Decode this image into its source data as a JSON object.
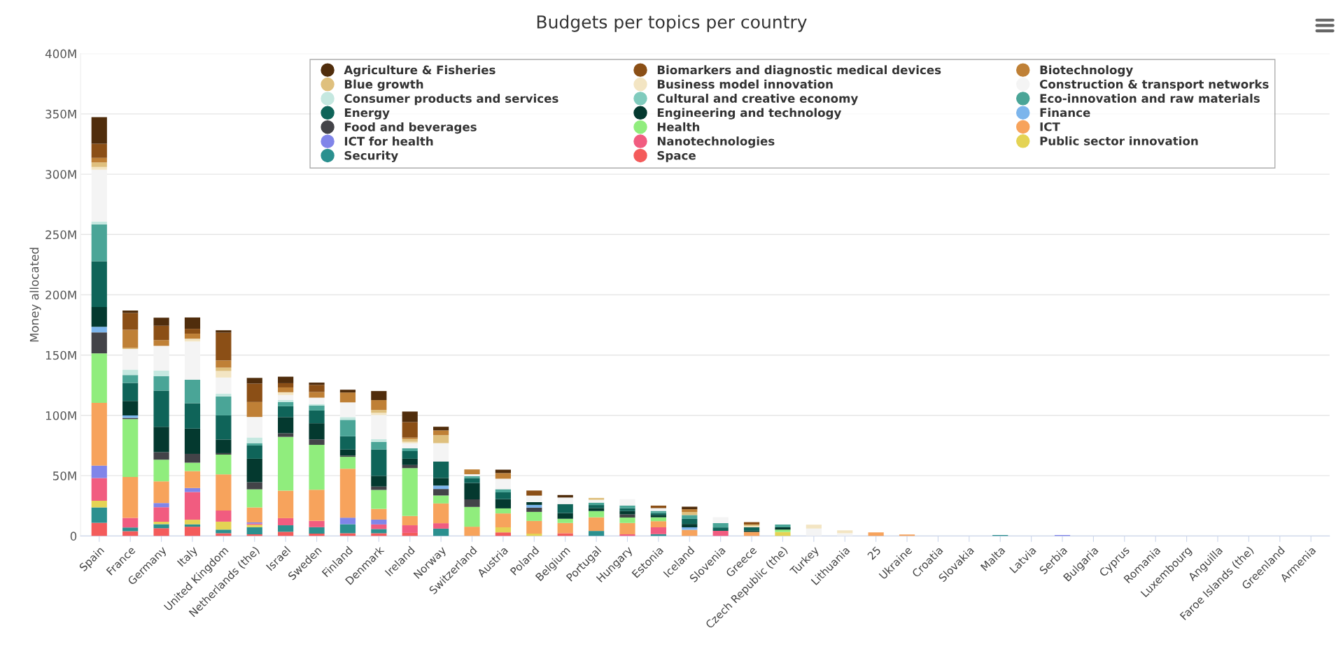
{
  "chart_data": {
    "type": "bar",
    "stacked": true,
    "title": "Budgets per topics per country",
    "ylabel": "Money allocated",
    "categories": [
      "Spain",
      "France",
      "Germany",
      "Italy",
      "United Kingdom",
      "Netherlands (the)",
      "Israel",
      "Sweden",
      "Finland",
      "Denmark",
      "Ireland",
      "Norway",
      "Switzerland",
      "Austria",
      "Poland",
      "Belgium",
      "Portugal",
      "Hungary",
      "Estonia",
      "Iceland",
      "Slovenia",
      "Greece",
      "Czech Republic (the)",
      "Turkey",
      "Lithuania",
      "25",
      "Ukraine",
      "Croatia",
      "Slovakia",
      "Malta",
      "Latvia",
      "Serbia",
      "Bulgaria",
      "Cyprus",
      "Romania",
      "Luxembourg",
      "Anguilla",
      "Faroe Islands (the)",
      "Greenland",
      "Armenia"
    ],
    "ylim": [
      0,
      400
    ],
    "yticks": [
      {
        "value": 0,
        "label": "0"
      },
      {
        "value": 50,
        "label": "50M"
      },
      {
        "value": 100,
        "label": "100M"
      },
      {
        "value": 150,
        "label": "150M"
      },
      {
        "value": 200,
        "label": "200M"
      },
      {
        "value": 250,
        "label": "250M"
      },
      {
        "value": 300,
        "label": "300M"
      },
      {
        "value": 350,
        "label": "350M"
      },
      {
        "value": 400,
        "label": "400M"
      }
    ],
    "grid": "y",
    "legend": "top",
    "series": [
      {
        "name": "Space",
        "color": "#f45b5b",
        "values": [
          11,
          4,
          6.5,
          7.7,
          2.3,
          1.4,
          3.5,
          1.9,
          2.3,
          2.3,
          2.6,
          0,
          0,
          3,
          0,
          2.3,
          0,
          0,
          0,
          0,
          0,
          0,
          0,
          0,
          0,
          0,
          0,
          0,
          0,
          0,
          0,
          0,
          0,
          0,
          0,
          0,
          0,
          0,
          0,
          0
        ]
      },
      {
        "name": "Security",
        "color": "#2b908f",
        "values": [
          12.7,
          3,
          3.3,
          2,
          3,
          5.9,
          5.4,
          5.4,
          7.5,
          3.5,
          0,
          6.1,
          0,
          0,
          0,
          0,
          4.2,
          0,
          1.5,
          0,
          0,
          0,
          0,
          0,
          0,
          0,
          0,
          0,
          0,
          0.8,
          0,
          0,
          0,
          0,
          0,
          0,
          0,
          0,
          0,
          0
        ]
      },
      {
        "name": "Public sector innovation",
        "color": "#e4d354",
        "values": [
          5.6,
          0,
          2,
          3.8,
          6.6,
          2,
          0,
          0,
          0,
          0,
          0,
          0,
          0,
          4.2,
          1.9,
          0,
          0,
          0,
          0,
          0,
          0,
          0,
          3.4,
          0,
          0,
          0,
          0,
          0,
          0,
          0,
          0,
          0,
          0,
          0,
          0,
          0,
          0,
          0,
          0,
          0
        ]
      },
      {
        "name": "Nanotechnologies",
        "color": "#f15c80",
        "values": [
          18.8,
          8,
          12,
          23,
          9.2,
          1,
          5.9,
          5.2,
          0,
          3.8,
          6.3,
          4.5,
          0,
          0,
          0,
          0,
          0,
          1.4,
          5.7,
          0,
          4.3,
          0,
          0,
          0,
          0,
          0,
          0,
          0,
          0,
          0,
          0,
          0,
          0,
          0,
          0,
          0,
          0,
          0,
          0,
          0
        ]
      },
      {
        "name": "ICT for health",
        "color": "#8085e9",
        "values": [
          10.3,
          0,
          3.5,
          3.3,
          0,
          1,
          0,
          0,
          5.4,
          4,
          0,
          0,
          0,
          0,
          0,
          0,
          0,
          0,
          0,
          0,
          0,
          0,
          0,
          0,
          0,
          0,
          0,
          0,
          0,
          0,
          0,
          0.8,
          0,
          0,
          0,
          0,
          0,
          0,
          0,
          0
        ]
      },
      {
        "name": "ICT",
        "color": "#f7a35c",
        "values": [
          52,
          34,
          18,
          14,
          30,
          12.4,
          22.8,
          25.8,
          40.6,
          8.9,
          7.7,
          16.4,
          7.7,
          11.5,
          10.6,
          8.5,
          11.3,
          9.4,
          5.1,
          5.1,
          0,
          3.4,
          0,
          0,
          0,
          3,
          1.3,
          0,
          0,
          0,
          0,
          0,
          0,
          0,
          0,
          0,
          0,
          0,
          0,
          0
        ]
      },
      {
        "name": "Health",
        "color": "#90ed7d",
        "values": [
          41,
          48,
          18,
          7,
          16.4,
          15,
          44.6,
          37.3,
          9.9,
          15.7,
          39.7,
          6.6,
          16.4,
          4.2,
          7.5,
          3.5,
          5.2,
          4.5,
          3.2,
          0,
          0,
          0,
          1.9,
          0,
          0,
          0,
          0,
          0,
          0,
          0,
          0,
          0,
          0,
          0,
          0,
          0,
          0,
          0,
          0,
          0
        ]
      },
      {
        "name": "Food and beverages",
        "color": "#434348",
        "values": [
          17.4,
          1,
          6.3,
          7.3,
          1.2,
          5.9,
          3,
          4.5,
          1,
          2.8,
          2.6,
          5.4,
          6.3,
          0,
          3.5,
          0,
          0,
          2.6,
          0,
          0,
          0,
          0,
          0,
          0,
          0,
          0,
          0,
          0,
          0,
          0,
          0,
          0,
          0,
          0,
          0,
          0,
          0,
          0,
          0,
          0
        ]
      },
      {
        "name": "Finance",
        "color": "#7cb5ec",
        "values": [
          4.7,
          2,
          0,
          0,
          0,
          0,
          0,
          0,
          0,
          0,
          0,
          2.8,
          0,
          0,
          2.3,
          0,
          0,
          0,
          0,
          2.1,
          0,
          0,
          0,
          0,
          0,
          0,
          0,
          0,
          0,
          0,
          0,
          0,
          0,
          0,
          0,
          0,
          0,
          0,
          0,
          0
        ]
      },
      {
        "name": "Engineering and technology",
        "color": "#04392f",
        "values": [
          16.4,
          12,
          21,
          21,
          11.3,
          19.5,
          13.4,
          13.4,
          5,
          8.9,
          5.2,
          6.3,
          13.6,
          7.7,
          2.3,
          4.7,
          2.5,
          2.8,
          2,
          2.8,
          0,
          1,
          1.9,
          0,
          0,
          0,
          0,
          0,
          0,
          0,
          0,
          0,
          0,
          0,
          0,
          0,
          0,
          0,
          0,
          0
        ]
      },
      {
        "name": "Energy",
        "color": "#0f6459",
        "values": [
          38,
          15,
          30,
          21,
          20,
          11,
          9,
          10.6,
          11,
          21.8,
          6.3,
          13.6,
          4,
          5.6,
          0,
          7.5,
          2.5,
          2.3,
          1.5,
          4.2,
          2.8,
          2.8,
          0,
          0,
          0,
          0,
          0,
          0,
          0,
          0,
          0,
          0,
          0,
          0,
          0,
          0,
          0,
          0,
          0,
          0
        ]
      },
      {
        "name": "Eco-innovation and raw materials",
        "color": "#4aa597",
        "values": [
          30.5,
          6.5,
          12,
          19.5,
          15.7,
          1.9,
          3.5,
          4,
          13.6,
          6.3,
          2.3,
          0,
          1.6,
          2.6,
          0,
          0,
          2,
          2.3,
          1.8,
          3.2,
          3.6,
          0,
          2.3,
          0,
          0,
          0,
          0,
          0,
          0,
          0,
          0,
          0,
          0,
          0,
          0,
          0,
          0,
          0,
          0,
          0
        ]
      },
      {
        "name": "Cultural and creative economy",
        "color": "#80cbbd",
        "values": [
          0,
          0,
          0,
          0,
          0,
          0,
          0,
          0,
          0,
          0,
          0,
          0,
          0,
          0,
          0,
          0,
          0,
          0,
          0,
          0,
          0,
          0,
          0,
          0,
          0,
          0,
          0,
          0,
          0,
          0,
          0,
          0,
          0,
          0,
          0,
          0,
          0,
          0,
          0,
          0
        ]
      },
      {
        "name": "Consumer products and services",
        "color": "#c5e8e0",
        "values": [
          2.3,
          4.5,
          4.5,
          0,
          2.3,
          4.7,
          1.6,
          1.4,
          2.3,
          2.3,
          0,
          0,
          0,
          0,
          0,
          0,
          0,
          0,
          0,
          0,
          0,
          0,
          0,
          0,
          0,
          0,
          0,
          0,
          0,
          0,
          0,
          0,
          0,
          0,
          0,
          0,
          0,
          0,
          0,
          0
        ]
      },
      {
        "name": "Construction & transport networks",
        "color": "#f4f4f4",
        "values": [
          43,
          17,
          20.6,
          31.7,
          13.4,
          17,
          4.2,
          5.2,
          12.2,
          20,
          4.2,
          15.3,
          1.6,
          8.7,
          5.4,
          5.4,
          2.3,
          5.2,
          2.3,
          0,
          4.9,
          0,
          0,
          6.2,
          2.3,
          0,
          0,
          0,
          0,
          0,
          0,
          0,
          0,
          0,
          0,
          0,
          0,
          0,
          0,
          0
        ]
      },
      {
        "name": "Business model innovation",
        "color": "#f3e5c3",
        "values": [
          2.3,
          0,
          0,
          2.3,
          5.4,
          0,
          2.3,
          0,
          0,
          1.9,
          1.2,
          0,
          0,
          0,
          0,
          0,
          0,
          0,
          0,
          0,
          0,
          1,
          0,
          3.2,
          2.4,
          0,
          0,
          0,
          0,
          0,
          0,
          0,
          0,
          0,
          0,
          0,
          0,
          0,
          0,
          0
        ]
      },
      {
        "name": "Blue growth",
        "color": "#dfc07e",
        "values": [
          3.8,
          1,
          0,
          0,
          2.8,
          0,
          0,
          0,
          0,
          2.3,
          2.3,
          6.6,
          0,
          0,
          0,
          0,
          1.6,
          0,
          0,
          2.5,
          0,
          1.3,
          0,
          0,
          0,
          0,
          0,
          0,
          0,
          0,
          0,
          0,
          0,
          0,
          0,
          0,
          0,
          0,
          0,
          0
        ]
      },
      {
        "name": "Biotechnology",
        "color": "#bf8036",
        "values": [
          3.8,
          15,
          4.7,
          4.2,
          6,
          12.4,
          4,
          4.7,
          8.2,
          8.2,
          1.2,
          4,
          4,
          4.7,
          0,
          0,
          0,
          0,
          0,
          2.3,
          0,
          0,
          0,
          0,
          0,
          0,
          0,
          0,
          0,
          0,
          0,
          0,
          0,
          0,
          0,
          0,
          0,
          0,
          0,
          0
        ]
      },
      {
        "name": "Biomarkers and diagnostic medical devices",
        "color": "#8b4f16",
        "values": [
          11.7,
          14,
          12,
          4,
          23,
          15.3,
          3.5,
          5.9,
          0,
          0,
          12.9,
          0,
          0,
          0,
          4.2,
          0,
          0,
          0,
          2.1,
          0,
          0,
          2,
          0,
          0,
          0,
          0,
          0,
          0,
          0,
          0,
          0,
          0,
          0,
          0,
          0,
          0,
          0,
          0,
          0,
          0
        ]
      },
      {
        "name": "Agriculture & Fisheries",
        "color": "#502d0c",
        "values": [
          22,
          2,
          6.6,
          9.4,
          2,
          4.7,
          5.4,
          1.9,
          2.3,
          7.5,
          8.7,
          3,
          0,
          2.8,
          0,
          2.1,
          0,
          0,
          0,
          2.1,
          0,
          0,
          0,
          0,
          0,
          0,
          0,
          0,
          0,
          0,
          0,
          0,
          0,
          0,
          0,
          0,
          0,
          0,
          0,
          0
        ]
      }
    ]
  }
}
